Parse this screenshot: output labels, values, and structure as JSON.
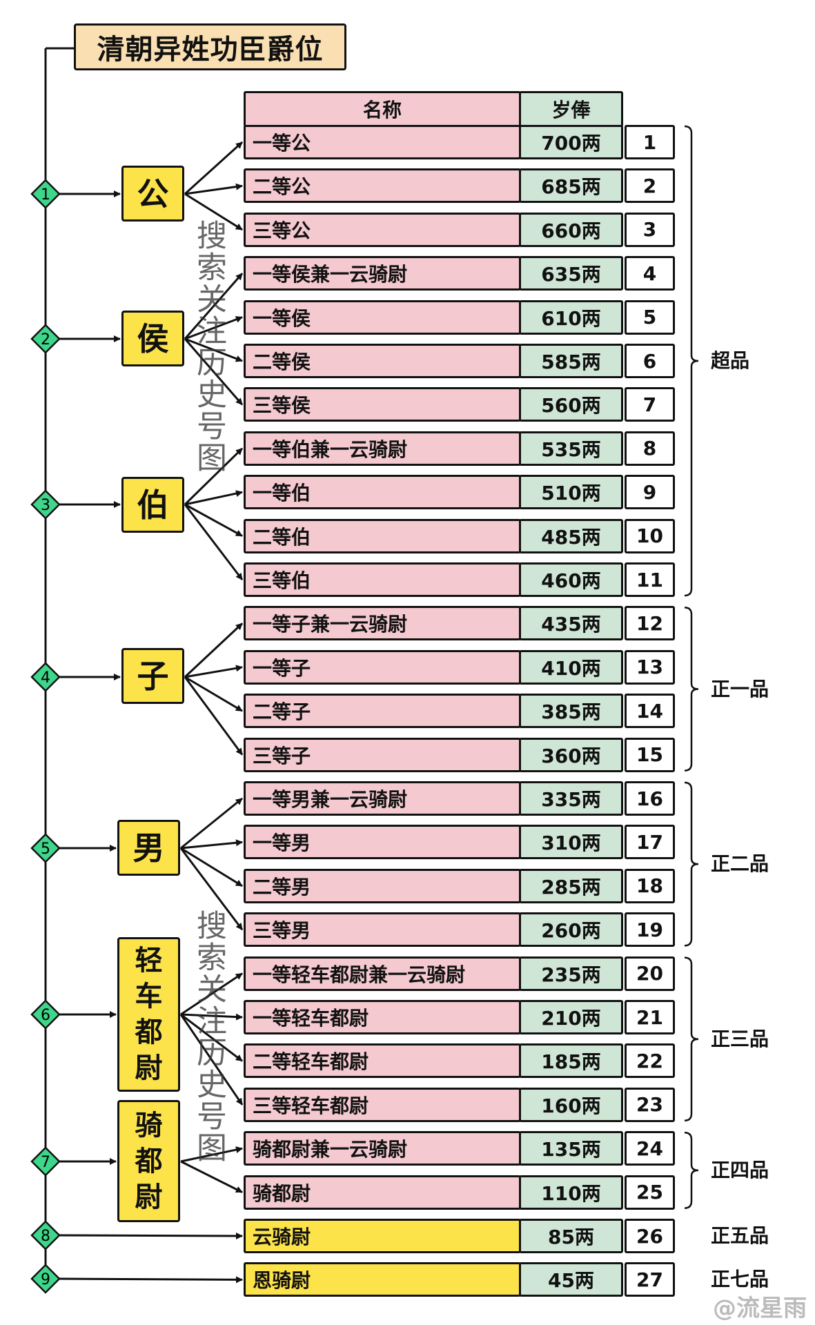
{
  "title": "清朝异姓功臣爵位",
  "header": {
    "name": "名称",
    "salary": "岁俸"
  },
  "colors": {
    "name_bg": "#f4c9d0",
    "name_bg_low": "#fde34a",
    "salary_bg": "#cfe6d6",
    "category_bg": "#fde34a",
    "title_bg": "#f9dfb2",
    "diamond": "#3ed68a"
  },
  "rows": [
    {
      "name": "一等公",
      "salary": "700两",
      "no": "1"
    },
    {
      "name": "二等公",
      "salary": "685两",
      "no": "2"
    },
    {
      "name": "三等公",
      "salary": "660两",
      "no": "3"
    },
    {
      "name": "一等侯兼一云骑尉",
      "salary": "635两",
      "no": "4"
    },
    {
      "name": "一等侯",
      "salary": "610两",
      "no": "5"
    },
    {
      "name": "二等侯",
      "salary": "585两",
      "no": "6"
    },
    {
      "name": "三等侯",
      "salary": "560两",
      "no": "7"
    },
    {
      "name": "一等伯兼一云骑尉",
      "salary": "535两",
      "no": "8"
    },
    {
      "name": "一等伯",
      "salary": "510两",
      "no": "9"
    },
    {
      "name": "二等伯",
      "salary": "485两",
      "no": "10"
    },
    {
      "name": "三等伯",
      "salary": "460两",
      "no": "11"
    },
    {
      "name": "一等子兼一云骑尉",
      "salary": "435两",
      "no": "12"
    },
    {
      "name": "一等子",
      "salary": "410两",
      "no": "13"
    },
    {
      "name": "二等子",
      "salary": "385两",
      "no": "14"
    },
    {
      "name": "三等子",
      "salary": "360两",
      "no": "15"
    },
    {
      "name": "一等男兼一云骑尉",
      "salary": "335两",
      "no": "16"
    },
    {
      "name": "一等男",
      "salary": "310两",
      "no": "17"
    },
    {
      "name": "二等男",
      "salary": "285两",
      "no": "18"
    },
    {
      "name": "三等男",
      "salary": "260两",
      "no": "19"
    },
    {
      "name": "一等轻车都尉兼一云骑尉",
      "salary": "235两",
      "no": "20"
    },
    {
      "name": "一等轻车都尉",
      "salary": "210两",
      "no": "21"
    },
    {
      "name": "二等轻车都尉",
      "salary": "185两",
      "no": "22"
    },
    {
      "name": "三等轻车都尉",
      "salary": "160两",
      "no": "23"
    },
    {
      "name": "骑都尉兼一云骑尉",
      "salary": "135两",
      "no": "24"
    },
    {
      "name": "骑都尉",
      "salary": "110两",
      "no": "25"
    },
    {
      "name": "云骑尉",
      "salary": "85两",
      "no": "26"
    },
    {
      "name": "恩骑尉",
      "salary": "45两",
      "no": "27"
    }
  ],
  "categories": [
    {
      "step": "1",
      "label": "公",
      "rows": [
        1,
        3
      ]
    },
    {
      "step": "2",
      "label": "侯",
      "rows": [
        4,
        7
      ]
    },
    {
      "step": "3",
      "label": "伯",
      "rows": [
        8,
        11
      ]
    },
    {
      "step": "4",
      "label": "子",
      "rows": [
        12,
        15
      ]
    },
    {
      "step": "5",
      "label": "男",
      "rows": [
        16,
        19
      ]
    },
    {
      "step": "6",
      "label": "轻车都尉",
      "rows": [
        20,
        23
      ]
    },
    {
      "step": "7",
      "label": "骑都尉",
      "rows": [
        24,
        25
      ]
    },
    {
      "step": "8",
      "label": "",
      "rows": [
        26,
        26
      ]
    },
    {
      "step": "9",
      "label": "",
      "rows": [
        27,
        27
      ]
    }
  ],
  "ranks": [
    {
      "label": "超品",
      "rows": [
        1,
        11
      ],
      "bracket": true
    },
    {
      "label": "正一品",
      "rows": [
        12,
        15
      ],
      "bracket": true
    },
    {
      "label": "正二品",
      "rows": [
        16,
        19
      ],
      "bracket": true
    },
    {
      "label": "正三品",
      "rows": [
        20,
        23
      ],
      "bracket": true
    },
    {
      "label": "正四品",
      "rows": [
        24,
        25
      ],
      "bracket": true
    },
    {
      "label": "正五品",
      "rows": [
        26,
        26
      ],
      "bracket": false
    },
    {
      "label": "正七品",
      "rows": [
        27,
        27
      ],
      "bracket": false
    }
  ],
  "watermarks": {
    "side": "搜索关注历史号图",
    "corner": "@流星雨"
  }
}
